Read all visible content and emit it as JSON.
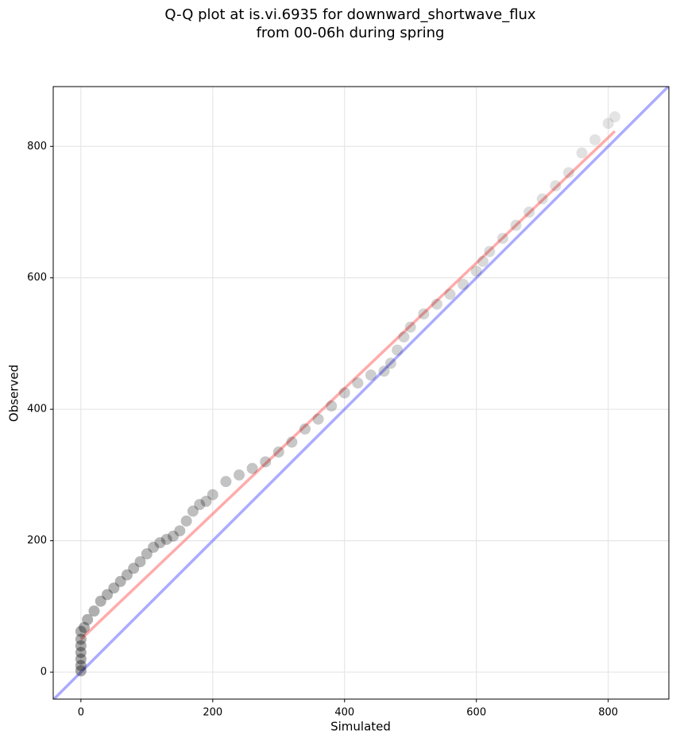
{
  "chart_data": {
    "type": "scatter",
    "title": [
      "Q-Q plot at is.vi.6935 for downward_shortwave_flux",
      "from 00-06h during spring"
    ],
    "xlabel": "Simulated",
    "ylabel": "Observed",
    "xlim": [
      -42,
      892
    ],
    "ylim": [
      -41,
      891
    ],
    "xticks": [
      0,
      200,
      400,
      600,
      800
    ],
    "yticks": [
      0,
      200,
      400,
      600,
      800
    ],
    "grid": true,
    "series": [
      {
        "color": "#000000",
        "x": [
          0,
          0,
          0,
          0,
          0,
          0,
          0,
          5,
          10,
          20,
          30,
          40,
          50,
          60,
          70,
          80,
          90,
          100,
          110,
          120,
          130,
          140,
          150,
          160,
          170,
          180,
          190,
          200,
          220,
          240,
          260,
          280,
          300,
          320,
          340,
          360,
          380,
          400,
          420,
          440,
          460,
          470,
          480,
          490,
          500,
          520,
          540,
          560,
          580,
          600,
          610,
          620,
          640,
          660,
          680,
          700,
          720,
          740,
          760,
          780,
          800,
          810
        ],
        "values": [
          2,
          10,
          20,
          30,
          40,
          50,
          62,
          68,
          80,
          93,
          108,
          118,
          128,
          138,
          148,
          158,
          168,
          180,
          190,
          197,
          202,
          207,
          215,
          230,
          245,
          255,
          260,
          270,
          290,
          300,
          310,
          320,
          335,
          350,
          370,
          385,
          405,
          425,
          440,
          452,
          458,
          470,
          490,
          510,
          525,
          545,
          560,
          575,
          590,
          610,
          625,
          640,
          660,
          680,
          700,
          720,
          740,
          760,
          790,
          810,
          835,
          845
        ]
      }
    ],
    "lines": [
      {
        "color": "#ff6666",
        "x": [
          0,
          810
        ],
        "y": [
          50,
          823
        ]
      },
      {
        "color": "#6666ff",
        "x": [
          -42,
          892
        ],
        "y": [
          -42,
          892
        ]
      }
    ]
  }
}
